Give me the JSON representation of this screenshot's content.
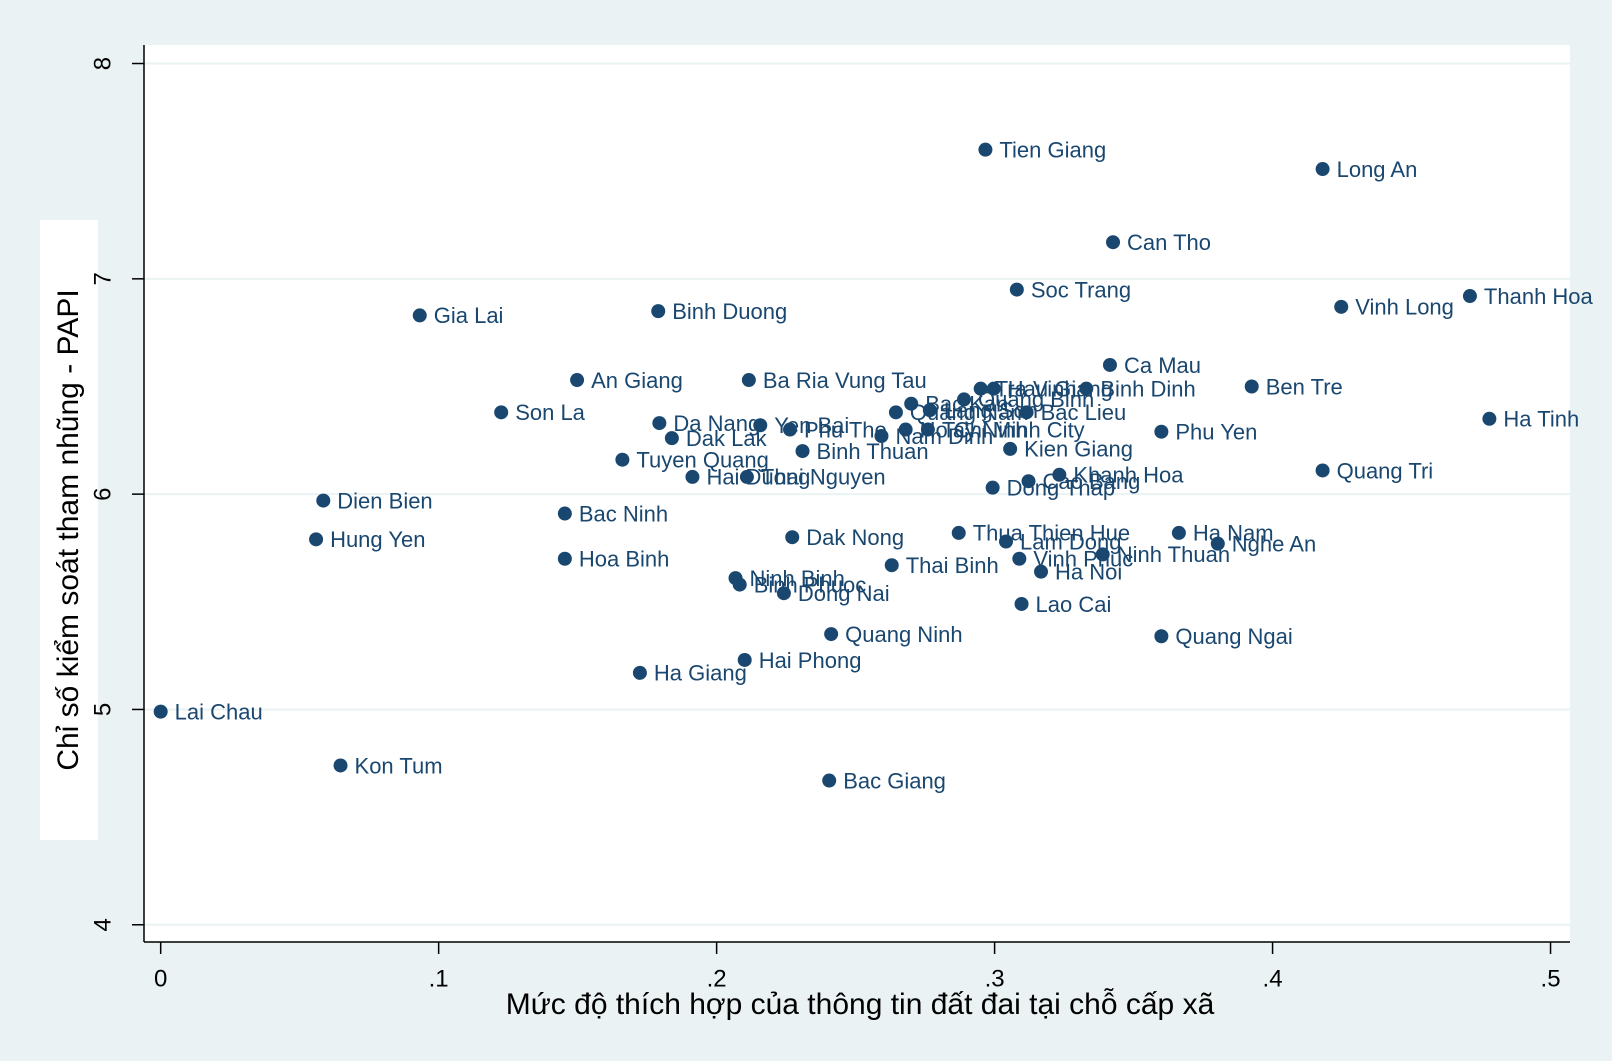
{
  "chart_data": {
    "type": "scatter",
    "x_label": "Mức độ thích hợp của thông tin đất đai tại chỗ cấp xã",
    "y_label": "Chỉ số kiểm soát tham nhũng - PAPI",
    "color": "#1a476f",
    "grid": true,
    "xlim": [
      -0.006,
      0.507
    ],
    "ylim": [
      3.92,
      8.086
    ],
    "xticks": [
      0,
      {
        "value": 0.1,
        "label": ".1"
      },
      {
        "value": 0.2,
        "label": ".2"
      },
      {
        "value": 0.3,
        "label": ".3"
      },
      {
        "value": 0.4,
        "label": ".4"
      },
      {
        "value": 0.5,
        "label": ".5"
      }
    ],
    "yticks": [
      4,
      5,
      6,
      7,
      8
    ],
    "labels": [
      "Tien Giang",
      "Long An",
      "Can Tho",
      "Soc Trang",
      "Thanh Hoa",
      "Vinh Long",
      "Gia Lai",
      "Binh Duong",
      "Ca Mau",
      "Ben Tre",
      "Binh Dinh",
      "Tra Vinh",
      "Hau Giang",
      "An Giang",
      "Ba Ria Vung Tau",
      "Son La",
      "Ha Tinh",
      "Bac Kan",
      "Quang Binh",
      "Lang Son",
      "Quang Nam",
      "Bac Lieu",
      "Ho Chi Minh City",
      "Tay Ninh",
      "Nam Dinh",
      "Phu Tho",
      "Yen Bai",
      "Da Nang",
      "Dak Lak",
      "Phu Yen",
      "Binh Thuan",
      "Kien Giang",
      "Tuyen Quang",
      "Hai Duong",
      "Thai Nguyen",
      "Quang Tri",
      "Khanh Hoa",
      "Cao Bang",
      "Dong Thap",
      "Dien Bien",
      "Bac Ninh",
      "Hung Yen",
      "Dak Nong",
      "Thua Thien Hue",
      "Ha Nam",
      "Lam Dong",
      "Nghe An",
      "Ninh Thuan",
      "Vinh Phuc",
      "Ha Noi",
      "Hoa Binh",
      "Thai Binh",
      "Ninh Binh",
      "Binh Phuoc",
      "Dong Nai",
      "Lao Cai",
      "Quang Ninh",
      "Quang Ngai",
      "Hai Phong",
      "Ha Giang",
      "Lai Chau",
      "Kon Tum",
      "Bac Giang"
    ],
    "x": [
      0.2967,
      0.418,
      0.3426,
      0.308,
      0.471,
      0.4247,
      0.0932,
      0.179,
      0.3415,
      0.3925,
      0.333,
      0.295,
      0.2997,
      0.1498,
      0.2116,
      0.1225,
      0.478,
      0.27,
      0.289,
      0.2767,
      0.2645,
      0.3115,
      0.268,
      0.276,
      0.2593,
      0.2264,
      0.2157,
      0.1794,
      0.1839,
      0.36,
      0.2309,
      0.3056,
      0.1661,
      0.1913,
      0.2109,
      0.418,
      0.3233,
      0.3122,
      0.2993,
      0.0585,
      0.1454,
      0.0559,
      0.2272,
      0.2871,
      0.3663,
      0.3041,
      0.3803,
      0.3389,
      0.3089,
      0.3167,
      0.1454,
      0.263,
      0.2068,
      0.2083,
      0.2242,
      0.3097,
      0.2412,
      0.36,
      0.2101,
      0.1724,
      0,
      0.0647,
      0.2405
    ],
    "values": [
      7.6,
      7.51,
      7.17,
      6.95,
      6.92,
      6.87,
      6.83,
      6.85,
      6.6,
      6.5,
      6.49,
      6.49,
      6.49,
      6.53,
      6.53,
      6.38,
      6.35,
      6.42,
      6.44,
      6.39,
      6.38,
      6.38,
      6.3,
      6.3,
      6.27,
      6.3,
      6.32,
      6.33,
      6.26,
      6.29,
      6.2,
      6.21,
      6.16,
      6.08,
      6.08,
      6.11,
      6.09,
      6.06,
      6.03,
      5.97,
      5.91,
      5.79,
      5.8,
      5.82,
      5.82,
      5.78,
      5.77,
      5.72,
      5.7,
      5.64,
      5.7,
      5.67,
      5.61,
      5.58,
      5.54,
      5.49,
      5.35,
      5.34,
      5.23,
      5.17,
      4.99,
      4.74,
      4.67
    ]
  }
}
